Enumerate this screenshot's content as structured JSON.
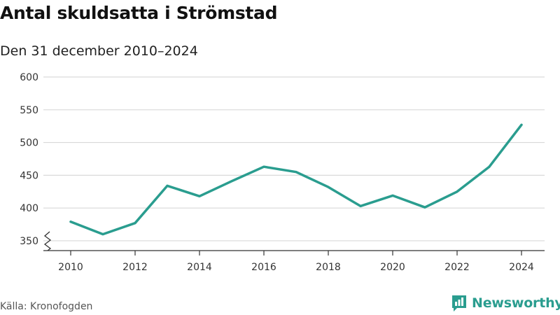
{
  "title": "Antal skuldsatta i Strömstad",
  "subtitle": "Den 31 december 2010–2024",
  "source": "Källa: Kronofogden",
  "brand": {
    "name": "Newsworthy",
    "icon": "newsworthy-logo-icon",
    "color": "#2a9d8f"
  },
  "chart_data": {
    "type": "line",
    "title": "Antal skuldsatta i Strömstad",
    "subtitle": "Den 31 december 2010–2024",
    "xlabel": "",
    "ylabel": "",
    "x": [
      2010,
      2011,
      2012,
      2013,
      2014,
      2015,
      2016,
      2017,
      2018,
      2019,
      2020,
      2021,
      2022,
      2023,
      2024
    ],
    "series": [
      {
        "name": "Antal skuldsatta",
        "color": "#2a9d8f",
        "values": [
          379,
          360,
          377,
          434,
          418,
          441,
          463,
          455,
          432,
          403,
          419,
          401,
          425,
          463,
          527
        ]
      }
    ],
    "ylim": [
      335,
      600
    ],
    "yticks": [
      350,
      400,
      450,
      500,
      550,
      600
    ],
    "xticks": [
      2010,
      2012,
      2014,
      2016,
      2018,
      2020,
      2022,
      2024
    ],
    "axis_break": true,
    "grid": true,
    "legend": "none"
  }
}
